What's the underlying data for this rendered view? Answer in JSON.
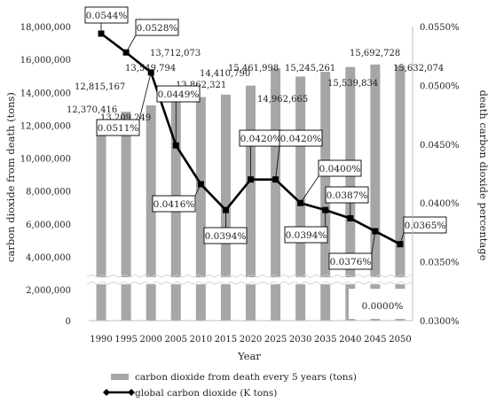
{
  "chart_data": {
    "type": "bar+line",
    "title": "",
    "categories": [
      "1990",
      "1995",
      "2000",
      "2005",
      "2010",
      "2015",
      "2020",
      "2025",
      "2030",
      "2035",
      "2040",
      "2045",
      "2050"
    ],
    "xlabel": "Year",
    "y_left_label": "carbon dioxide from death (tons)",
    "y_right_label": "death carbon dioxide percentage",
    "y_left_ticks": [
      "0",
      "2,000,000",
      "4,000,000",
      "6,000,000",
      "8,000,000",
      "10,000,000",
      "12,000,000",
      "14,000,000",
      "16,000,000",
      "18,000,000"
    ],
    "y_right_ticks": [
      "0.0300%",
      "0.0350%",
      "0.0400%",
      "0.0450%",
      "0.0500%",
      "0.0550%"
    ],
    "axis_break": true,
    "grid": false,
    "legend_position": "bottom",
    "series": [
      {
        "name": "carbon dioxide from death every 5 years (tons)",
        "kind": "bar",
        "color": "#a6a6a6",
        "values": [
          12370416,
          12815167,
          13209249,
          13549794,
          13712073,
          13862321,
          14410790,
          15461998,
          14962665,
          15245261,
          15539834,
          15692728,
          15632074
        ],
        "labels": [
          "12,370,416",
          "12,815,167",
          "13,209,249",
          "13,549,794",
          "13,712,073",
          "13,862,321",
          "14,410,790",
          "15,461,998",
          "14,962,665",
          "15,245,261",
          "15,539,834",
          "15,692,728",
          "15,632,074"
        ]
      },
      {
        "name": "global carbon dioxide (K tons)",
        "kind": "line",
        "color": "#000000",
        "values": [
          0.0544,
          0.0528,
          0.0511,
          0.0449,
          0.0416,
          0.0394,
          0.042,
          0.042,
          0.04,
          0.0394,
          0.0387,
          0.0376,
          0.0365
        ],
        "labels": [
          "0.0544%",
          "0.0528%",
          "0.0511%",
          "0.0449%",
          "0.0416%",
          "0.0394%",
          "0.0420%",
          "0.0420%",
          "0.0400%",
          "0.0394%",
          "0.0387%",
          "0.0376%",
          "0.0365%"
        ]
      }
    ],
    "extra_callout": "0.0000%"
  }
}
